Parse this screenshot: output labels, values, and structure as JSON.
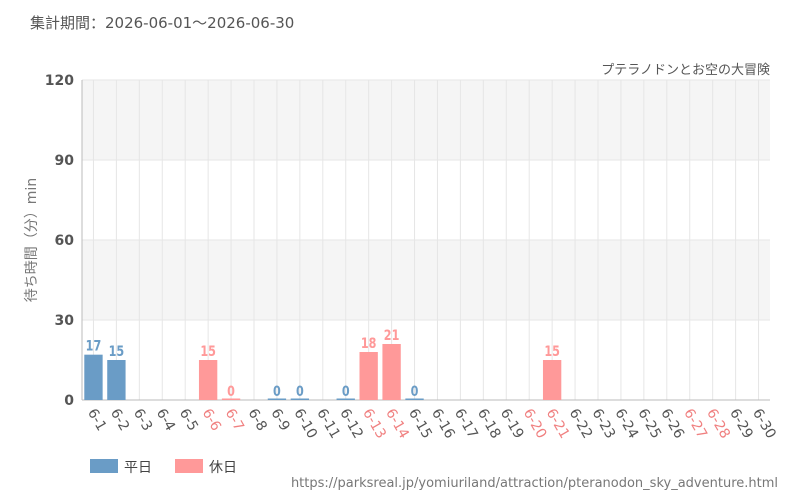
{
  "chart_data": {
    "type": "bar",
    "title": "集計期間：2026-06-01～2026-06-30",
    "subtitle": "プテラノドンとお空の大冒険",
    "y_label": "待ち時間（分）min",
    "source": "https://parksreal.jp/yomiuriland/attraction/pteranodon_sky_adventure.html",
    "categories": [
      "6-1",
      "6-2",
      "6-3",
      "6-4",
      "6-5",
      "6-6",
      "6-7",
      "6-8",
      "6-9",
      "6-10",
      "6-11",
      "6-12",
      "6-13",
      "6-14",
      "6-15",
      "6-16",
      "6-17",
      "6-18",
      "6-19",
      "6-20",
      "6-21",
      "6-22",
      "6-23",
      "6-24",
      "6-25",
      "6-26",
      "6-27",
      "6-28",
      "6-29",
      "6-30"
    ],
    "x_label_colors": [
      "#555",
      "#555",
      "#555",
      "#555",
      "#555",
      "#f08080",
      "#f08080",
      "#555",
      "#555",
      "#555",
      "#555",
      "#555",
      "#f08080",
      "#f08080",
      "#555",
      "#555",
      "#555",
      "#555",
      "#555",
      "#f08080",
      "#f08080",
      "#555",
      "#555",
      "#555",
      "#555",
      "#555",
      "#f08080",
      "#f08080",
      "#555",
      "#555"
    ],
    "series": [
      {
        "name": "平日",
        "color": "#6a9cc6",
        "values": [
          17,
          15,
          null,
          null,
          null,
          null,
          null,
          null,
          0,
          0,
          null,
          0,
          null,
          null,
          0,
          null,
          null,
          null,
          null,
          null,
          null,
          null,
          null,
          null,
          null,
          null,
          null,
          null,
          null,
          null
        ]
      },
      {
        "name": "休日",
        "color": "#ff9999",
        "values": [
          null,
          null,
          null,
          null,
          null,
          15,
          0,
          null,
          null,
          null,
          null,
          null,
          18,
          21,
          null,
          null,
          null,
          null,
          null,
          null,
          15,
          null,
          null,
          null,
          null,
          null,
          null,
          null,
          null,
          null
        ]
      }
    ],
    "ylim": [
      0,
      120
    ],
    "yticks": [
      0,
      30,
      60,
      90,
      120
    ],
    "grid": true,
    "legend": "bottom-left"
  }
}
